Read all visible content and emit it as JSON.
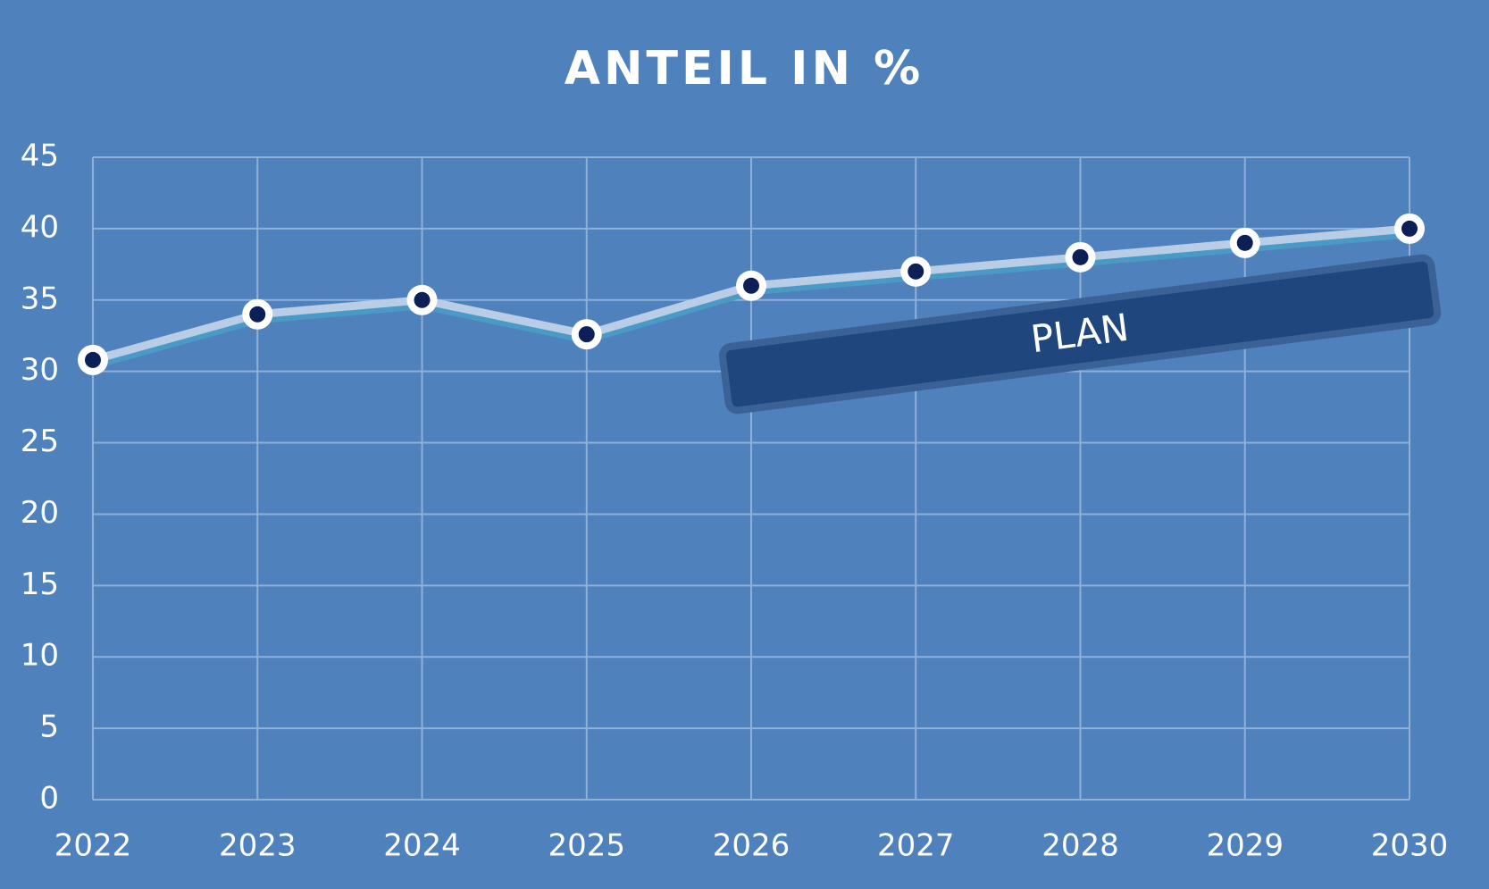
{
  "chart_data": {
    "type": "line",
    "title": "ANTEIL IN %",
    "categories": [
      "2022",
      "2023",
      "2024",
      "2025",
      "2026",
      "2027",
      "2028",
      "2029",
      "2030"
    ],
    "series": [
      {
        "name": "Anteil",
        "color": "#b9cde6",
        "values": [
          30.8,
          34,
          35,
          32.6,
          36,
          37,
          38,
          39,
          40
        ]
      }
    ],
    "ylim": [
      0,
      45
    ],
    "yticks": [
      0,
      5,
      10,
      15,
      20,
      25,
      30,
      35,
      40,
      45
    ],
    "grid": true,
    "annotation": "PLAN"
  }
}
